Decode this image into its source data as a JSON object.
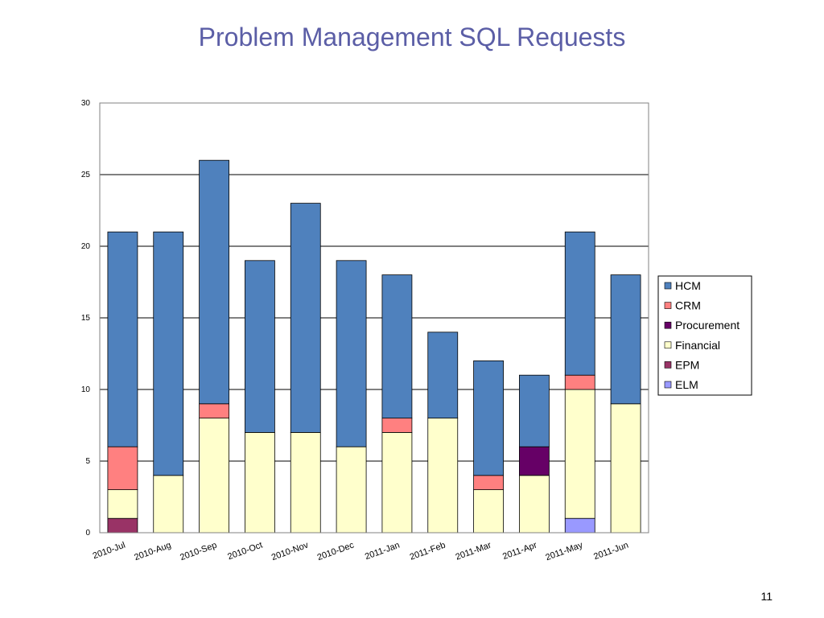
{
  "slide": {
    "title": "Problem Management SQL Requests",
    "page_number": "11"
  },
  "chart_data": {
    "type": "bar",
    "stacked": true,
    "title": "Problem Management SQL Requests",
    "xlabel": "",
    "ylabel": "",
    "ylim": [
      0,
      30
    ],
    "yticks": [
      0,
      5,
      10,
      15,
      20,
      25,
      30
    ],
    "grid": true,
    "legend_position": "right",
    "categories": [
      "2010-Jul",
      "2010-Aug",
      "2010-Sep",
      "2010-Oct",
      "2010-Nov",
      "2010-Dec",
      "2011-Jan",
      "2011-Feb",
      "2011-Mar",
      "2011-Apr",
      "2011-May",
      "2011-Jun"
    ],
    "series": [
      {
        "name": "ELM",
        "color": "#9999ff",
        "values": [
          0,
          0,
          0,
          0,
          0,
          0,
          0,
          0,
          0,
          0,
          1,
          0
        ]
      },
      {
        "name": "EPM",
        "color": "#993366",
        "values": [
          1,
          0,
          0,
          0,
          0,
          0,
          0,
          0,
          0,
          0,
          0,
          0
        ]
      },
      {
        "name": "Financial",
        "color": "#ffffcc",
        "values": [
          2,
          4,
          8,
          7,
          7,
          6,
          7,
          8,
          3,
          4,
          9,
          9
        ]
      },
      {
        "name": "Procurement",
        "color": "#660066",
        "values": [
          0,
          0,
          0,
          0,
          0,
          0,
          0,
          0,
          0,
          2,
          0,
          0
        ]
      },
      {
        "name": "CRM",
        "color": "#ff8080",
        "values": [
          3,
          0,
          1,
          0,
          0,
          0,
          1,
          0,
          1,
          0,
          1,
          0
        ]
      },
      {
        "name": "HCM",
        "color": "#4f81bd",
        "values": [
          15,
          17,
          17,
          12,
          16,
          13,
          10,
          6,
          8,
          5,
          10,
          9
        ]
      }
    ],
    "legend_order": [
      "HCM",
      "CRM",
      "Procurement",
      "Financial",
      "EPM",
      "ELM"
    ]
  }
}
